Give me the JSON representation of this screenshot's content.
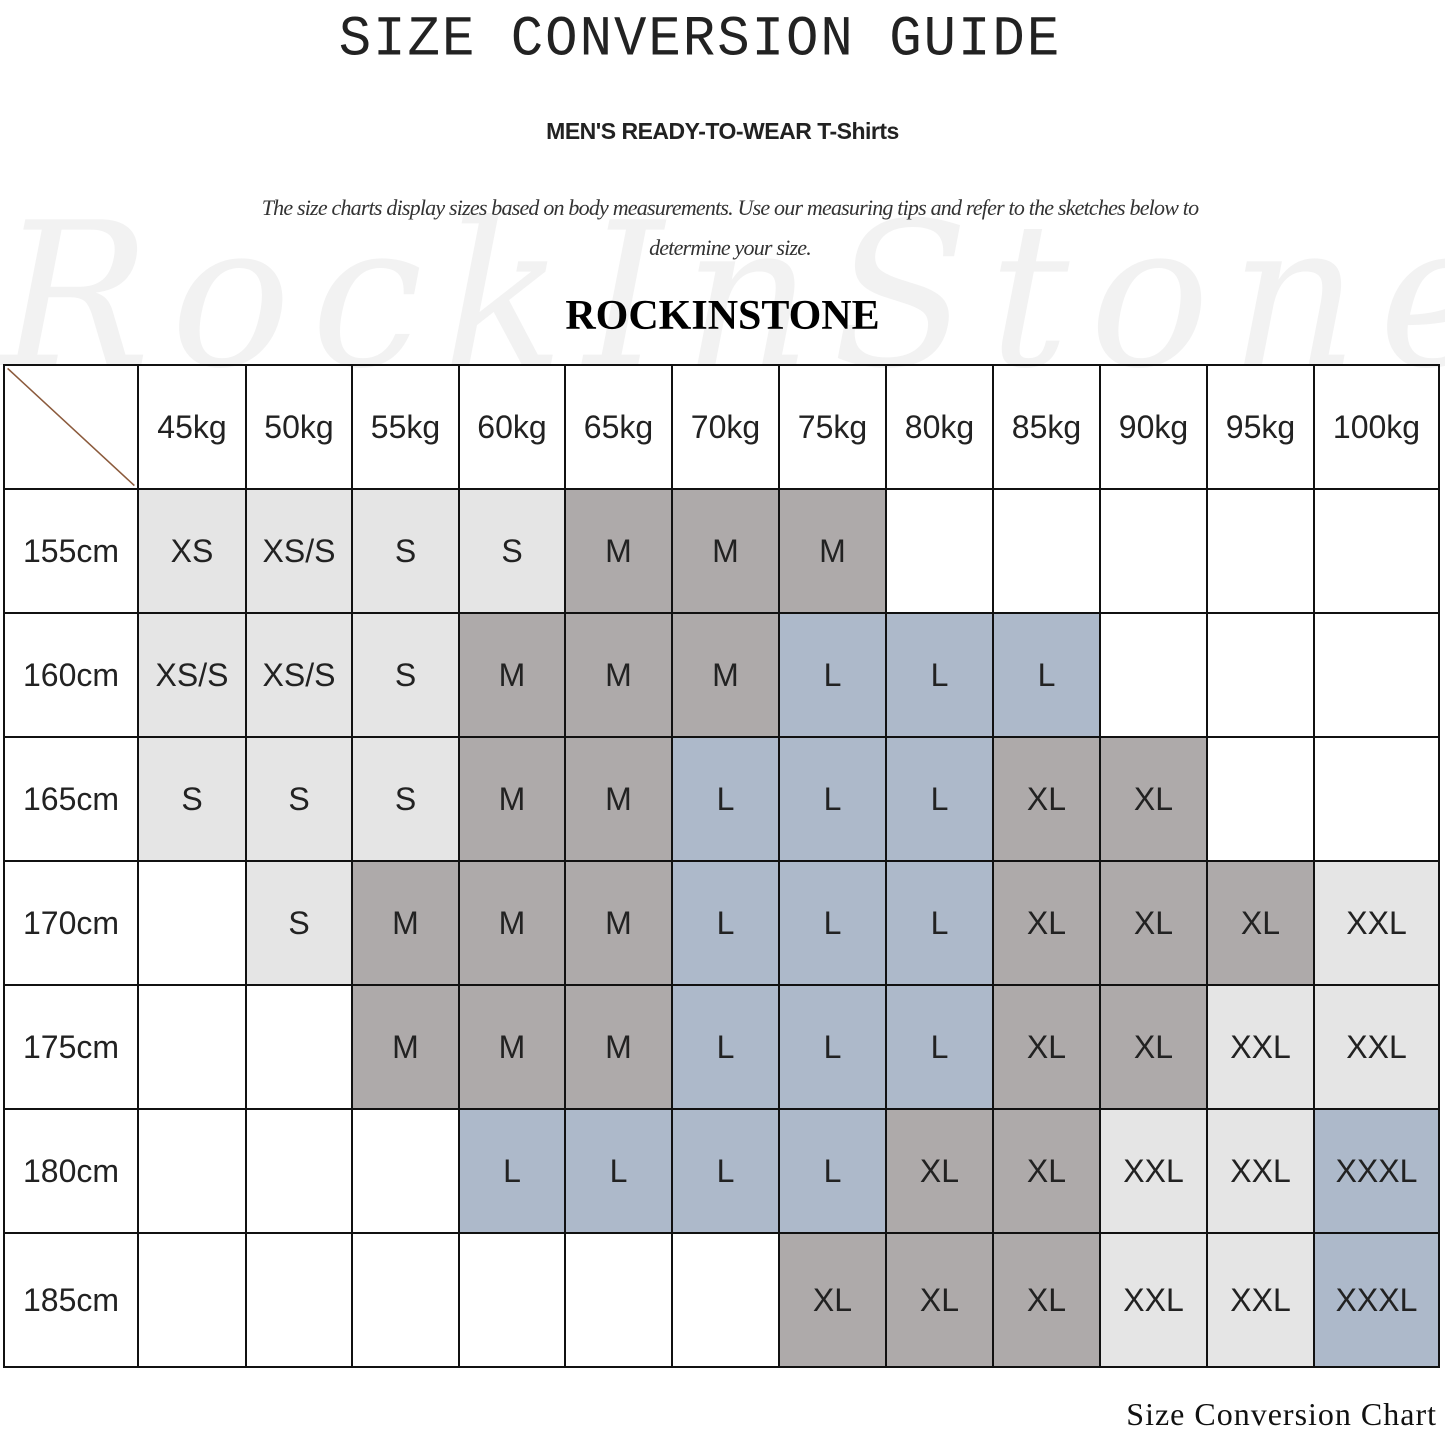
{
  "header": {
    "title": "SIZE CONVERSION GUIDE",
    "subtitle": "MEN'S READY-TO-WEAR T-Shirts",
    "description": "The size charts display sizes based on body measurements. Use our measuring tips and refer to the sketches below to determine your size.",
    "brand": "ROCKINSTONE",
    "watermark": "RockInStone"
  },
  "footer": {
    "caption": "Size Conversion Chart"
  },
  "colors": {
    "light": "#e5e5e5",
    "gray": "#aeaaaa",
    "blue": "#adb9ca",
    "empty": "#ffffff",
    "diagonal": "#8b5a3c"
  },
  "size_color": {
    "XS": "light",
    "XS/S": "light",
    "S": "light",
    "XXL": "light",
    "M": "gray",
    "XL": "gray",
    "L": "blue",
    "XXXL": "blue"
  },
  "chart_data": {
    "type": "table",
    "columns": [
      "45kg",
      "50kg",
      "55kg",
      "60kg",
      "65kg",
      "70kg",
      "75kg",
      "80kg",
      "85kg",
      "90kg",
      "95kg",
      "100kg"
    ],
    "rows": [
      {
        "label": "155cm",
        "values": [
          "XS",
          "XS/S",
          "S",
          "S",
          "M",
          "M",
          "M",
          "",
          "",
          "",
          "",
          ""
        ]
      },
      {
        "label": "160cm",
        "values": [
          "XS/S",
          "XS/S",
          "S",
          "M",
          "M",
          "M",
          "L",
          "L",
          "L",
          "",
          "",
          ""
        ]
      },
      {
        "label": "165cm",
        "values": [
          "S",
          "S",
          "S",
          "M",
          "M",
          "L",
          "L",
          "L",
          "XL",
          "XL",
          "",
          ""
        ]
      },
      {
        "label": "170cm",
        "values": [
          "",
          "S",
          "M",
          "M",
          "M",
          "L",
          "L",
          "L",
          "XL",
          "XL",
          "XL",
          "XXL"
        ]
      },
      {
        "label": "175cm",
        "values": [
          "",
          "",
          "M",
          "M",
          "M",
          "L",
          "L",
          "L",
          "XL",
          "XL",
          "XXL",
          "XXL"
        ]
      },
      {
        "label": "180cm",
        "values": [
          "",
          "",
          "",
          "L",
          "L",
          "L",
          "L",
          "XL",
          "XL",
          "XXL",
          "XXL",
          "XXXL"
        ]
      },
      {
        "label": "185cm",
        "values": [
          "",
          "",
          "",
          "",
          "",
          "",
          "XL",
          "XL",
          "XL",
          "XXL",
          "XXL",
          "XXXL"
        ]
      }
    ]
  }
}
